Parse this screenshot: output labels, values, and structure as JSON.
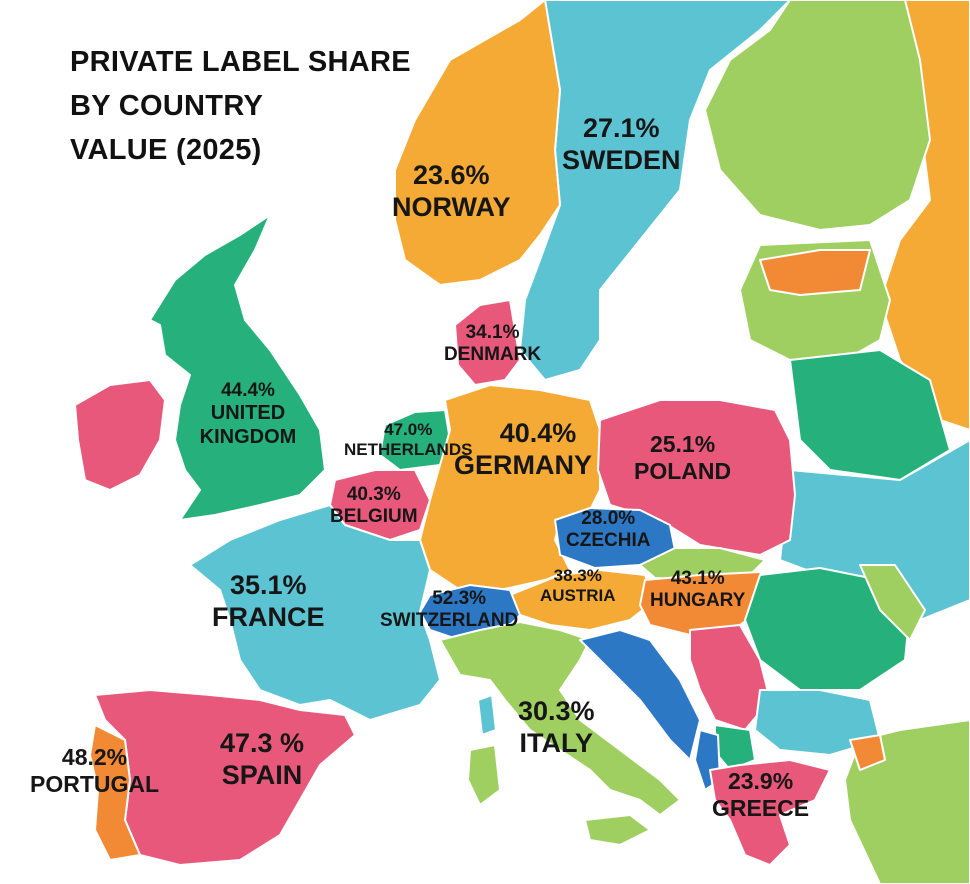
{
  "title_lines": [
    "PRIVATE LABEL SHARE",
    "BY COUNTRY",
    "VALUE (2025)"
  ],
  "colors": {
    "sea": "#ffffff",
    "norway": "#f4aa35",
    "sweden": "#5cc3d3",
    "finland": "#9fcf61",
    "uk": "#25b07c",
    "ireland": "#e8587a",
    "denmark": "#e8587a",
    "netherlands": "#25b07c",
    "belgium": "#e8587a",
    "germany": "#f4aa35",
    "poland": "#e8587a",
    "czechia": "#2d78c4",
    "austria": "#f4aa35",
    "hungary": "#f28a35",
    "switzerland": "#2d78c4",
    "france": "#5cc3d3",
    "spain": "#e8587a",
    "portugal": "#f28a35",
    "italy": "#9fcf61",
    "greece": "#e8587a",
    "romania": "#25b07c",
    "belarus": "#25b07c",
    "ukraine": "#5cc3d3",
    "baltics": "#9fcf61",
    "russia": "#f4aa35",
    "balkans": "#5cc3d3"
  },
  "countries": [
    {
      "id": "norway",
      "value": "23.6%",
      "name": "NORWAY"
    },
    {
      "id": "sweden",
      "value": "27.1%",
      "name": "SWEDEN"
    },
    {
      "id": "denmark",
      "value": "34.1%",
      "name": "DENMARK"
    },
    {
      "id": "uk",
      "value": "44.4%",
      "name": "UNITED KINGDOM"
    },
    {
      "id": "netherlands",
      "value": "47.0%",
      "name": "NETHERLANDS"
    },
    {
      "id": "germany",
      "value": "40.4%",
      "name": "GERMANY"
    },
    {
      "id": "poland",
      "value": "25.1%",
      "name": "POLAND"
    },
    {
      "id": "belgium",
      "value": "40.3%",
      "name": "BELGIUM"
    },
    {
      "id": "czechia",
      "value": "28.0%",
      "name": "CZECHIA"
    },
    {
      "id": "austria",
      "value": "38.3%",
      "name": "AUSTRIA"
    },
    {
      "id": "hungary",
      "value": "43.1%",
      "name": "HUNGARY"
    },
    {
      "id": "france",
      "value": "35.1%",
      "name": "FRANCE"
    },
    {
      "id": "switzerland",
      "value": "52.3%",
      "name": "SWITZERLAND"
    },
    {
      "id": "italy",
      "value": "30.3%",
      "name": "ITALY"
    },
    {
      "id": "portugal",
      "value": "48.2%",
      "name": "PORTUGAL"
    },
    {
      "id": "spain",
      "value": "47.3 %",
      "name": "SPAIN"
    },
    {
      "id": "greece",
      "value": "23.9%",
      "name": "GREECE"
    }
  ]
}
